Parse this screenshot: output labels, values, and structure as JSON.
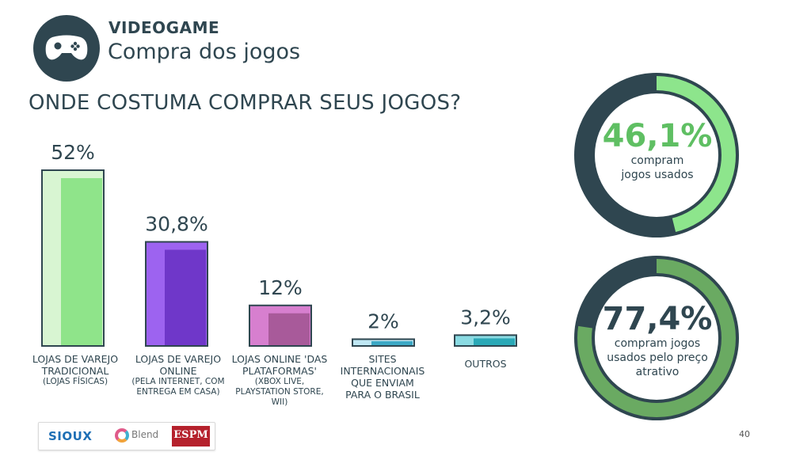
{
  "header": {
    "category": "VIDEOGAME",
    "subtitle": "Compra dos jogos",
    "icon": "gamepad-icon"
  },
  "chart_data": {
    "type": "bar",
    "title": "ONDE COSTUMA COMPRAR SEUS JOGOS?",
    "categories": [
      {
        "label": "LOJAS DE VAREJO TRADICIONAL",
        "note": "(LOJAS FÍSICAS)"
      },
      {
        "label": "LOJAS DE VAREJO ONLINE",
        "note": "(PELA INTERNET, COM ENTREGA EM CASA)"
      },
      {
        "label": "LOJAS ONLINE 'DAS PLATAFORMAS'",
        "note": "(XBOX LIVE, PLAYSTATION STORE, WII)"
      },
      {
        "label": "SITES INTERNACIONAIS QUE ENVIAM PARA O BRASIL",
        "note": ""
      },
      {
        "label": "OUTROS",
        "note": ""
      }
    ],
    "values": [
      52,
      30.8,
      12,
      2,
      3.2
    ],
    "value_labels": [
      "52%",
      "30,8%",
      "12%",
      "2%",
      "3,2%"
    ],
    "colors": [
      {
        "light": "#d8f5d2",
        "dark": "#8fe48a"
      },
      {
        "light": "#9d63f0",
        "dark": "#6f37c9"
      },
      {
        "light": "#d77fcf",
        "dark": "#a85a9a"
      },
      {
        "light": "#bfe8f4",
        "dark": "#3ca9c6"
      },
      {
        "light": "#8adbe3",
        "dark": "#2aa9b7"
      }
    ],
    "xlabel": "",
    "ylabel": "",
    "ylim": [
      0,
      52
    ]
  },
  "rings": [
    {
      "value": 46.1,
      "value_label": "46,1%",
      "caption": [
        "compram",
        "jogos usados"
      ],
      "fill_color": "#8de58c",
      "track_color": "#2f4650",
      "text_color": "#5fbf63"
    },
    {
      "value": 77.4,
      "value_label": "77,4%",
      "caption": [
        "compram jogos",
        "usados pelo preço",
        "atrativo"
      ],
      "fill_color": "#6aaa62",
      "track_color": "#2f4650",
      "text_color": "#2f4650"
    }
  ],
  "footer": {
    "logos": {
      "sioux": "SIOUX",
      "blend": "Blend",
      "espm": "ESPM"
    },
    "page_number": "40"
  }
}
